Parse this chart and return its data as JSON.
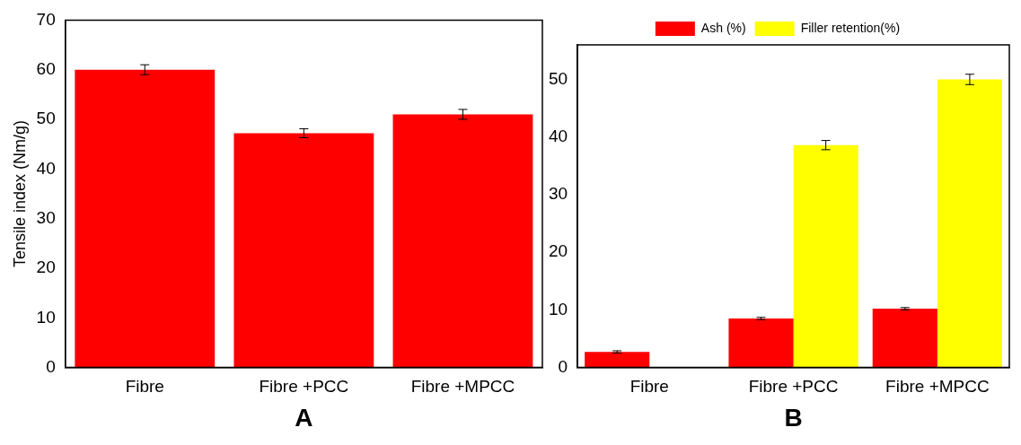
{
  "chart_data": [
    {
      "type": "bar",
      "xlabel": "A",
      "ylabel": "Tensile index (Nm/g)",
      "categories": [
        "Fibre",
        "Fibre +PCC",
        "Fibre +MPCC"
      ],
      "series": [
        {
          "color": "#ff0000",
          "values": [
            60,
            47.2,
            51
          ],
          "errors": [
            1,
            0.9,
            1
          ]
        }
      ],
      "ylim": [
        0,
        70
      ],
      "yticks": [
        0,
        10,
        20,
        30,
        40,
        50,
        60,
        70
      ],
      "grid": false,
      "legend": false
    },
    {
      "type": "bar",
      "xlabel": "B",
      "categories": [
        "Fibre",
        "Fibre +PCC",
        "Fibre +MPCC"
      ],
      "series": [
        {
          "name": "Ash (%)",
          "color": "#ff0000",
          "values": [
            2.7,
            8.5,
            10.2
          ],
          "errors": [
            0.2,
            0.2,
            0.2
          ]
        },
        {
          "name": "Filler retention(%)",
          "color": "#ffff00",
          "values": [
            null,
            38.6,
            50
          ],
          "errors": [
            null,
            0.8,
            0.9
          ]
        }
      ],
      "ylim": [
        0,
        56
      ],
      "yticks": [
        0,
        10,
        20,
        30,
        40,
        50
      ],
      "grid": false,
      "legend": "top"
    }
  ]
}
